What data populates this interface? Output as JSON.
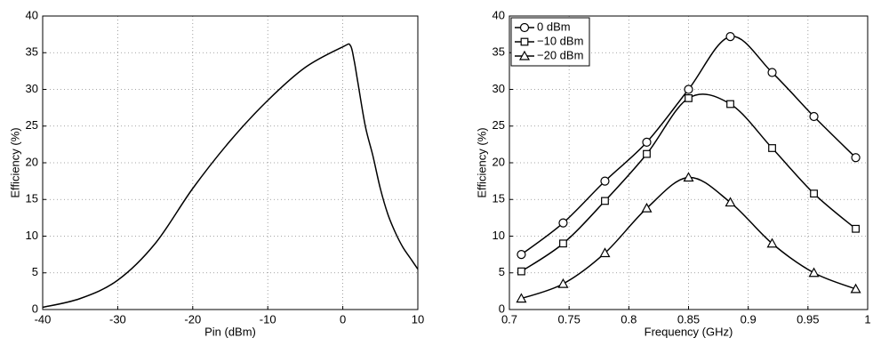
{
  "chart_data": [
    {
      "type": "line",
      "xlabel": "Pin (dBm)",
      "ylabel": "Efficiency (%)",
      "xlim": [
        -40,
        10
      ],
      "ylim": [
        0,
        40
      ],
      "xticks": [
        -40,
        -30,
        -20,
        -10,
        0,
        10
      ],
      "yticks": [
        0,
        5,
        10,
        15,
        20,
        25,
        30,
        35,
        40
      ],
      "grid": true,
      "series": [
        {
          "color": "#000000",
          "x": [
            -40,
            -35,
            -30,
            -25,
            -20,
            -15,
            -10,
            -5,
            0,
            1,
            1.5,
            2,
            3,
            4,
            5,
            6,
            7,
            8,
            9,
            10
          ],
          "values": [
            0.3,
            1.5,
            4,
            9,
            16.5,
            23,
            28.5,
            33,
            35.8,
            36,
            34,
            31,
            25,
            21,
            16.5,
            13,
            10.5,
            8.5,
            7,
            5.5
          ]
        }
      ]
    },
    {
      "type": "line",
      "xlabel": "Frequency (GHz)",
      "ylabel": "Efficiency (%)",
      "xlim": [
        0.7,
        1
      ],
      "ylim": [
        0,
        40
      ],
      "xticks": [
        0.7,
        0.75,
        0.8,
        0.85,
        0.9,
        0.95,
        1
      ],
      "yticks": [
        0,
        5,
        10,
        15,
        20,
        25,
        30,
        35,
        40
      ],
      "grid": true,
      "legend": "top-left",
      "x": [
        0.71,
        0.745,
        0.78,
        0.815,
        0.85,
        0.885,
        0.92,
        0.955,
        0.99
      ],
      "series": [
        {
          "name": "0 dBm",
          "color": "#000000",
          "marker": "circle",
          "values": [
            7.5,
            11.8,
            17.5,
            22.8,
            30,
            37.2,
            32.3,
            26.3,
            20.7
          ]
        },
        {
          "name": "−10 dBm",
          "color": "#000000",
          "marker": "square",
          "values": [
            5.2,
            9,
            14.8,
            21.2,
            28.8,
            28,
            22,
            15.8,
            11
          ]
        },
        {
          "name": "−20 dBm",
          "color": "#000000",
          "marker": "triangle",
          "values": [
            1.5,
            3.5,
            7.7,
            13.8,
            18,
            14.6,
            9,
            5,
            2.8
          ]
        }
      ]
    }
  ]
}
